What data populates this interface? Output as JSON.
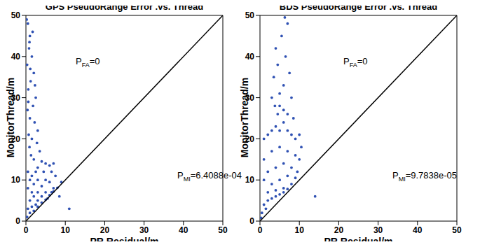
{
  "chart_data": [
    {
      "type": "scatter",
      "title": "GPS PseudoRange Error .vs. Thread",
      "x_label": "PR Residual/m",
      "y_label": "MonitorThread/m",
      "xlim": [
        0,
        50
      ],
      "ylim": [
        0,
        50
      ],
      "xticks": [
        0,
        10,
        20,
        30,
        40,
        50
      ],
      "yticks": [
        0,
        10,
        20,
        30,
        40,
        50
      ],
      "annotations": [
        {
          "text": "P",
          "subscript": "FA",
          "suffix": "=0"
        },
        {
          "text": "P",
          "subscript": "MI",
          "suffix": "=6.4088e-04"
        }
      ],
      "series": [
        {
          "type": "scatter",
          "color": "#2f51b3",
          "marker": "circle",
          "x": [
            0.5,
            1,
            0.8,
            1.5,
            0.3,
            2,
            1.2,
            0.6,
            2.5,
            1.8,
            0.4,
            1,
            2.2,
            3,
            0.7,
            1.5,
            2.8,
            0.9,
            3.5,
            1.3,
            2,
            4,
            5,
            6,
            7,
            3,
            0.5,
            1.5,
            2.5,
            4.5,
            6.5,
            7.5,
            1,
            3,
            5,
            6,
            2,
            4,
            7,
            0.5,
            1.5,
            3,
            5,
            6.5,
            2,
            4,
            5.5,
            1,
            3,
            0.5,
            1.5,
            2.5,
            4,
            0.3,
            1,
            2,
            3,
            5,
            6,
            7,
            8,
            9,
            11,
            8.5,
            0.2,
            1.7,
            0.9,
            2.3,
            0.6,
            1.1
          ],
          "y": [
            48,
            45,
            42,
            40,
            38,
            36,
            34,
            32,
            30,
            28,
            27,
            25,
            24,
            22,
            21,
            20,
            19,
            18,
            17,
            16,
            15,
            14.5,
            14,
            13.5,
            14,
            13,
            12,
            11,
            12,
            12,
            12,
            11,
            10,
            10,
            10,
            9.5,
            9,
            8.5,
            8,
            8,
            7,
            7,
            7,
            7,
            6,
            6,
            5.5,
            5,
            5,
            3,
            3.5,
            4,
            4.5,
            1,
            2,
            2.5,
            3.5,
            5.2,
            6.3,
            7.2,
            8.1,
            9.5,
            3,
            6,
            49,
            46,
            43.5,
            33,
            29,
            37
          ]
        },
        {
          "type": "line",
          "color": "#000000",
          "line_style": "solid",
          "x": [
            0,
            50
          ],
          "y": [
            0,
            50
          ]
        }
      ]
    },
    {
      "type": "scatter",
      "title": "BDS PseudoRange Error .vs. Thread",
      "x_label": "PR Residual/m",
      "y_label": "MonitorThread/m",
      "xlim": [
        0,
        50
      ],
      "ylim": [
        0,
        50
      ],
      "xticks": [
        0,
        10,
        20,
        30,
        40,
        50
      ],
      "yticks": [
        0,
        10,
        20,
        30,
        40,
        50
      ],
      "annotations": [
        {
          "text": "P",
          "subscript": "FA",
          "suffix": "=0"
        },
        {
          "text": "P",
          "subscript": "MI",
          "suffix": "=9.7838e-05"
        }
      ],
      "series": [
        {
          "type": "scatter",
          "color": "#2f51b3",
          "marker": "circle",
          "x": [
            1,
            2,
            3,
            4,
            5,
            6,
            7,
            8,
            9,
            10,
            10.5,
            1,
            3,
            5,
            7,
            9,
            10,
            2,
            4,
            6,
            8,
            9.5,
            1,
            3,
            5,
            7,
            9,
            2,
            4,
            6,
            8,
            1,
            2,
            3,
            4,
            5,
            0.5,
            1.5,
            0.3,
            6,
            7,
            14,
            3,
            3.5,
            4,
            4.5,
            5,
            5.5,
            6,
            6.5,
            7,
            7.5,
            8,
            6,
            4.5,
            5,
            7,
            8.5,
            3.8,
            6.3
          ],
          "y": [
            20,
            21,
            22,
            23,
            22,
            24,
            22,
            21,
            20,
            21,
            18,
            15,
            17,
            18,
            17,
            16,
            15,
            12,
            13,
            14,
            13,
            12,
            10,
            9,
            10,
            11,
            10.5,
            7,
            7.5,
            8,
            9,
            4,
            5,
            5.5,
            6,
            6.5,
            2,
            3,
            0.8,
            7,
            7.8,
            6,
            30,
            35,
            42,
            38,
            28,
            45,
            33,
            40,
            48,
            36,
            30,
            27,
            26,
            31,
            26,
            25,
            28,
            49.5
          ]
        },
        {
          "type": "line",
          "color": "#000000",
          "line_style": "solid",
          "x": [
            0,
            50
          ],
          "y": [
            0,
            50
          ]
        }
      ]
    }
  ]
}
